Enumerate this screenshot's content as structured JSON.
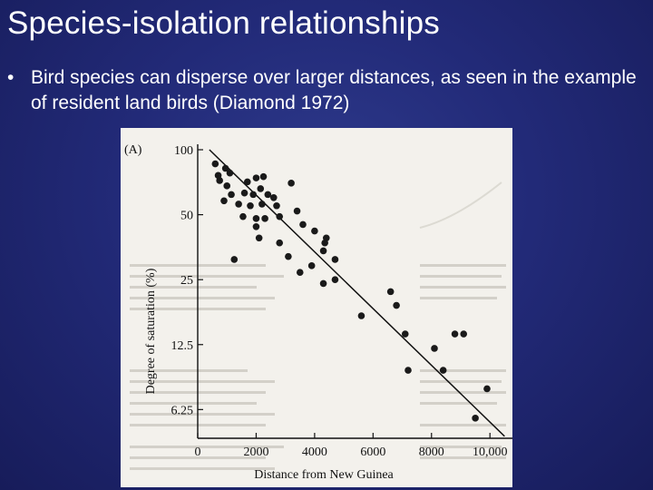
{
  "slide": {
    "title": "Species-isolation relationships",
    "bullet": "Bird species can disperse over larger distances, as seen in the example of resident land birds (Diamond 1972)",
    "bullet_symbol": "•"
  },
  "figure": {
    "panel_label": "(A)",
    "background": "#f3f1ec",
    "ink": "#111111"
  },
  "chart_data": {
    "type": "scatter",
    "xlabel": "Distance from New Guinea",
    "ylabel": "Degree of saturation (%)",
    "y_scale": "log",
    "xlim": [
      0,
      10800
    ],
    "ylim": [
      4.6,
      106
    ],
    "x_ticks": [
      0,
      2000,
      4000,
      6000,
      8000,
      10000
    ],
    "x_tick_labels": [
      "0",
      "2000",
      "4000",
      "6000",
      "8000",
      "10,000"
    ],
    "y_ticks": [
      100,
      50,
      25,
      12.5,
      6.25
    ],
    "y_tick_labels": [
      "100",
      "50",
      "25",
      "12.5",
      "6.25"
    ],
    "grid": false,
    "trend_line": [
      [
        400,
        100
      ],
      [
        10500,
        4.7
      ]
    ],
    "points": [
      [
        600,
        86
      ],
      [
        700,
        76
      ],
      [
        950,
        82
      ],
      [
        1100,
        78
      ],
      [
        750,
        72
      ],
      [
        1000,
        68
      ],
      [
        1150,
        62
      ],
      [
        900,
        58
      ],
      [
        1700,
        71
      ],
      [
        2000,
        74
      ],
      [
        2250,
        75
      ],
      [
        1600,
        63
      ],
      [
        2150,
        66
      ],
      [
        1900,
        62
      ],
      [
        2400,
        62
      ],
      [
        2600,
        60
      ],
      [
        3200,
        70
      ],
      [
        1400,
        56
      ],
      [
        1800,
        55
      ],
      [
        2200,
        56
      ],
      [
        2700,
        55
      ],
      [
        3400,
        52
      ],
      [
        1550,
        49
      ],
      [
        2000,
        48
      ],
      [
        2300,
        48
      ],
      [
        2800,
        49
      ],
      [
        4000,
        42
      ],
      [
        3600,
        45
      ],
      [
        4400,
        39
      ],
      [
        4350,
        37
      ],
      [
        4300,
        34
      ],
      [
        2000,
        44
      ],
      [
        2100,
        39
      ],
      [
        2800,
        37
      ],
      [
        1250,
        31
      ],
      [
        3100,
        32
      ],
      [
        4700,
        31
      ],
      [
        3900,
        29
      ],
      [
        3500,
        27
      ],
      [
        4300,
        24
      ],
      [
        4700,
        25
      ],
      [
        6600,
        22
      ],
      [
        6800,
        19
      ],
      [
        5600,
        17
      ],
      [
        7100,
        14
      ],
      [
        8100,
        12
      ],
      [
        8800,
        14
      ],
      [
        9100,
        14
      ],
      [
        7200,
        9.5
      ],
      [
        8400,
        9.5
      ],
      [
        9900,
        7.8
      ],
      [
        9500,
        5.7
      ]
    ]
  }
}
